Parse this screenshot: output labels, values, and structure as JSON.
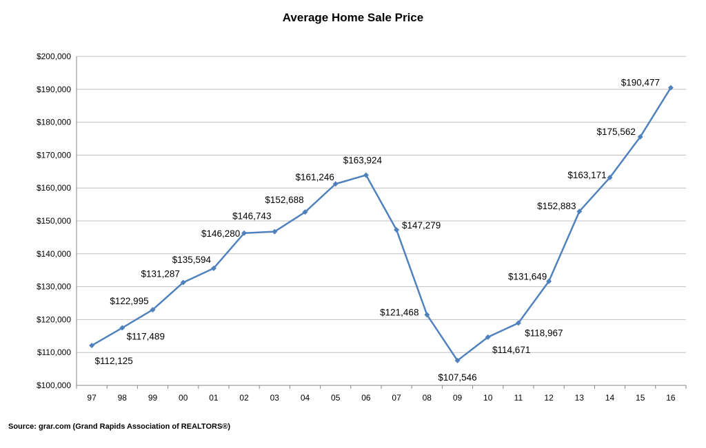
{
  "chart_data": {
    "type": "line",
    "title": "Average Home Sale Price",
    "xlabel": "",
    "ylabel": "",
    "categories": [
      "97",
      "98",
      "99",
      "00",
      "01",
      "02",
      "03",
      "04",
      "05",
      "06",
      "07",
      "08",
      "09",
      "10",
      "11",
      "12",
      "13",
      "14",
      "15",
      "16"
    ],
    "series": [
      {
        "values": [
          112125,
          117489,
          122995,
          131287,
          135594,
          146280,
          146743,
          152688,
          161246,
          163924,
          147279,
          121468,
          107546,
          114671,
          118967,
          131649,
          152883,
          163171,
          175562,
          190477
        ],
        "color": "#4F81BD",
        "marker": "diamond"
      }
    ],
    "data_labels": [
      "$112,125",
      "$117,489",
      "$122,995",
      "$131,287",
      "$135,594",
      "$146,280",
      "$146,743",
      "$152,688",
      "$161,246",
      "$163,924",
      "$147,279",
      "$121,468",
      "$107,546",
      "$114,671",
      "$118,967",
      "$131,649",
      "$152,883",
      "$163,171",
      "$175,562",
      "$190,477"
    ],
    "ylim": [
      100000,
      200000
    ],
    "yticks": [
      100000,
      110000,
      120000,
      130000,
      140000,
      150000,
      160000,
      170000,
      180000,
      190000,
      200000
    ],
    "ytick_labels": [
      "$100,000",
      "$110,000",
      "$120,000",
      "$130,000",
      "$140,000",
      "$150,000",
      "$160,000",
      "$170,000",
      "$180,000",
      "$190,000",
      "$200,000"
    ],
    "grid": "horizontal",
    "legend": "none"
  },
  "source": "Source:  grar.com (Grand Rapids Association of REALTORS®)"
}
